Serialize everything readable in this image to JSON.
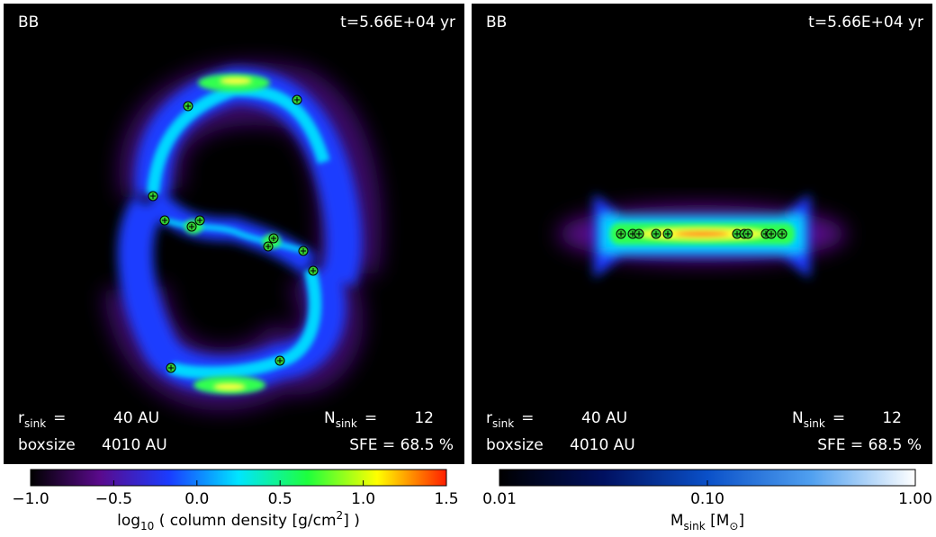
{
  "panels": [
    {
      "label": "BB",
      "time": "t=5.66E+04 yr",
      "rsink": {
        "symbol": "r",
        "sub": "sink",
        "eq": "=",
        "value": "40 AU"
      },
      "boxsize": {
        "label": "boxsize",
        "value": "4010 AU"
      },
      "nsink": {
        "symbol": "N",
        "sub": "sink",
        "eq": "=",
        "value": "12"
      },
      "sfe": "SFE = 68.5 %"
    },
    {
      "label": "BB",
      "time": "t=5.66E+04 yr",
      "rsink": {
        "symbol": "r",
        "sub": "sink",
        "eq": "=",
        "value": "40 AU"
      },
      "boxsize": {
        "label": "boxsize",
        "value": "4010 AU"
      },
      "nsink": {
        "symbol": "N",
        "sub": "sink",
        "eq": "=",
        "value": "12"
      },
      "sfe": "SFE = 68.5 %"
    }
  ],
  "colorbars": [
    {
      "range": [
        -1.0,
        1.5
      ],
      "log": false,
      "colors": [
        "#000000",
        "#5a0a8c",
        "#1a3cff",
        "#00e5ff",
        "#1eff3c",
        "#ffff00",
        "#ff1e00"
      ],
      "ticks": [
        {
          "value": -1.0,
          "label": "−1.0"
        },
        {
          "value": -0.5,
          "label": "−0.5"
        },
        {
          "value": 0.0,
          "label": "0.0"
        },
        {
          "value": 0.5,
          "label": "0.5"
        },
        {
          "value": 1.0,
          "label": "1.0"
        },
        {
          "value": 1.5,
          "label": "1.5"
        }
      ],
      "title": {
        "pre": "log",
        "sub": "10",
        "mid": " ( column density [g/cm",
        "sup": "2",
        "post": "] )"
      }
    },
    {
      "range": [
        0.01,
        1.0
      ],
      "log": true,
      "colors": [
        "#000000",
        "#001060",
        "#0a50c8",
        "#50a0f0",
        "#ffffff"
      ],
      "ticks": [
        {
          "value": 0.01,
          "label": "0.01"
        },
        {
          "value": 0.1,
          "label": "0.10"
        },
        {
          "value": 1.0,
          "label": "1.00"
        }
      ],
      "title": {
        "pre": "M",
        "sub": "sink",
        "mid": " [M",
        "sub2": "⊙",
        "post": "]"
      }
    }
  ]
}
